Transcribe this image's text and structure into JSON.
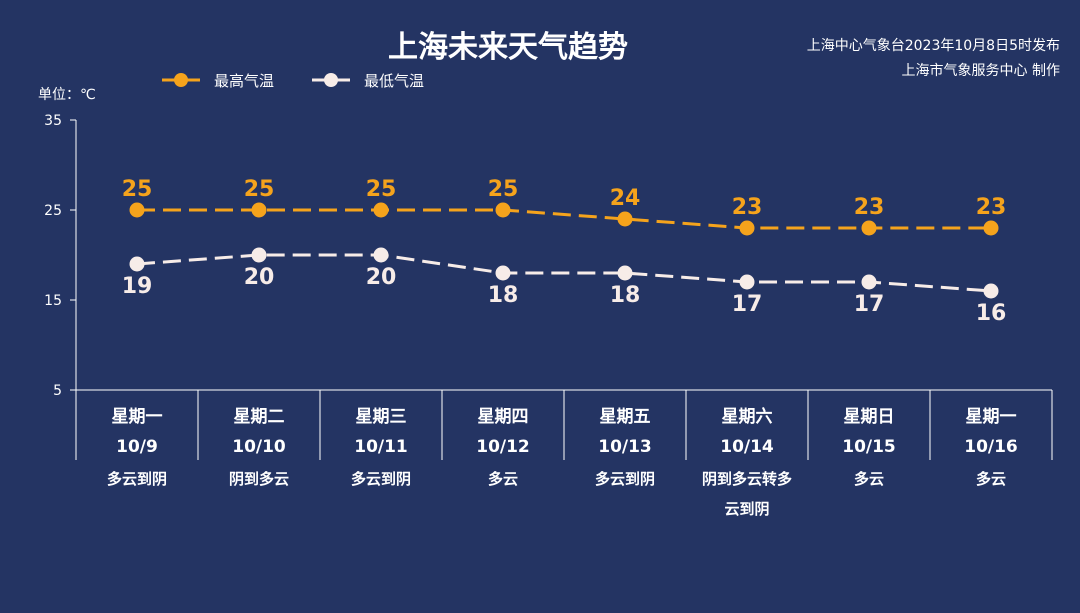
{
  "chart_data": {
    "type": "line",
    "title": "上海未来天气趋势",
    "source_lines": [
      "上海中心气象台2023年10月8日5时发布",
      "上海市气象服务中心 制作"
    ],
    "ylabel": "单位：℃",
    "ylim": [
      5,
      35
    ],
    "yticks": [
      35,
      25,
      15,
      5
    ],
    "legend_position": "top-left",
    "categories": [
      {
        "weekday": "星期一",
        "date": "10/9",
        "weather": "多云到阴"
      },
      {
        "weekday": "星期二",
        "date": "10/10",
        "weather": "阴到多云"
      },
      {
        "weekday": "星期三",
        "date": "10/11",
        "weather": "多云到阴"
      },
      {
        "weekday": "星期四",
        "date": "10/12",
        "weather": "多云"
      },
      {
        "weekday": "星期五",
        "date": "10/13",
        "weather": "多云到阴"
      },
      {
        "weekday": "星期六",
        "date": "10/14",
        "weather": "阴到多云转多云到阴"
      },
      {
        "weekday": "星期日",
        "date": "10/15",
        "weather": "多云"
      },
      {
        "weekday": "星期一",
        "date": "10/16",
        "weather": "多云"
      }
    ],
    "series": [
      {
        "name": "最高气温",
        "color": "#f5a31c",
        "values": [
          25,
          25,
          25,
          25,
          24,
          23,
          23,
          23
        ]
      },
      {
        "name": "最低气温",
        "color": "#f7ece8",
        "values": [
          19,
          20,
          20,
          18,
          18,
          17,
          17,
          16
        ]
      }
    ],
    "colors": {
      "background": "#243463",
      "axis": "#ffffff"
    }
  }
}
